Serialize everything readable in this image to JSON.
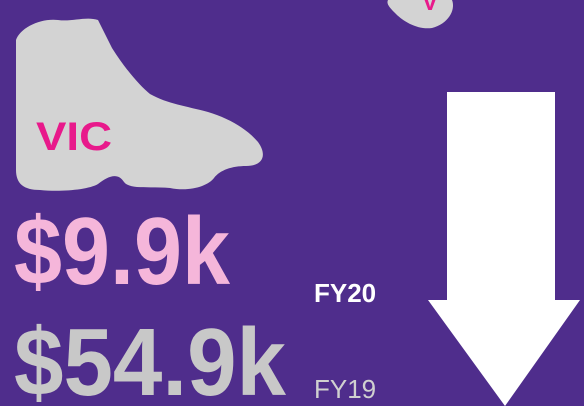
{
  "top_region": {
    "label": "V"
  },
  "region": {
    "label": "VIC"
  },
  "current": {
    "amount": "$9.9k",
    "period": "FY20"
  },
  "previous": {
    "amount": "$54.9k",
    "period": "FY19"
  }
}
